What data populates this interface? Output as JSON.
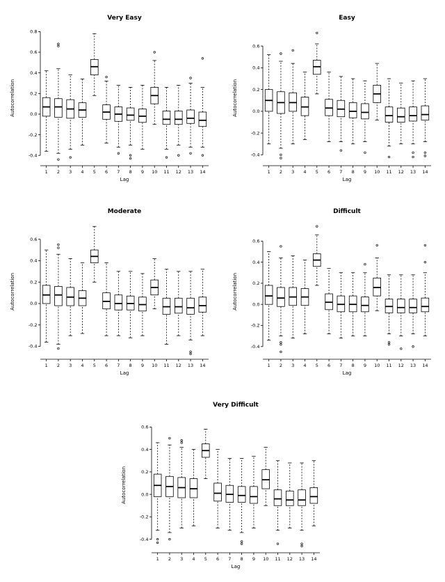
{
  "figure": {
    "background": "#ffffff",
    "line_color": "#000000"
  },
  "box_format": [
    "whisker_low",
    "q1",
    "median",
    "q3",
    "whisker_high",
    "outliers"
  ],
  "chart_data": [
    {
      "type": "boxplot",
      "title": "Very Easy",
      "xlabel": "Lag",
      "ylabel": "Autocorrelation",
      "categories": [
        1,
        2,
        3,
        4,
        5,
        6,
        7,
        8,
        9,
        10,
        11,
        12,
        13,
        14
      ],
      "ylim": [
        -0.5,
        0.85
      ],
      "yticks": [
        -0.4,
        -0.2,
        0.0,
        0.2,
        0.4,
        0.6,
        0.8
      ],
      "grid": false,
      "legend": "none",
      "boxes": [
        [
          -0.36,
          -0.02,
          0.07,
          0.16,
          0.42,
          []
        ],
        [
          -0.38,
          -0.03,
          0.07,
          0.15,
          0.44,
          [
            0.68,
            0.66,
            -0.44
          ]
        ],
        [
          -0.34,
          -0.04,
          0.05,
          0.14,
          0.38,
          [
            -0.42
          ]
        ],
        [
          -0.3,
          -0.03,
          0.04,
          0.11,
          0.34,
          []
        ],
        [
          0.18,
          0.38,
          0.46,
          0.53,
          0.78,
          []
        ],
        [
          -0.28,
          -0.05,
          0.02,
          0.09,
          0.32,
          [
            0.36
          ]
        ],
        [
          -0.32,
          -0.07,
          0.0,
          0.07,
          0.28,
          [
            -0.38
          ]
        ],
        [
          -0.3,
          -0.06,
          -0.01,
          0.06,
          0.26,
          [
            -0.4,
            -0.43
          ]
        ],
        [
          -0.34,
          -0.08,
          -0.02,
          0.05,
          0.28,
          []
        ],
        [
          -0.1,
          0.1,
          0.18,
          0.26,
          0.52,
          [
            0.6
          ]
        ],
        [
          -0.34,
          -0.1,
          -0.05,
          0.03,
          0.26,
          [
            -0.42
          ]
        ],
        [
          -0.3,
          -0.1,
          -0.05,
          0.03,
          0.28,
          [
            -0.4
          ]
        ],
        [
          -0.32,
          -0.09,
          -0.04,
          0.04,
          0.3,
          [
            0.35,
            -0.38
          ]
        ],
        [
          -0.32,
          -0.12,
          -0.06,
          0.02,
          0.26,
          [
            0.54,
            -0.4
          ]
        ]
      ]
    },
    {
      "type": "boxplot",
      "title": "Easy",
      "xlabel": "Lag",
      "ylabel": "Autocorrelation",
      "categories": [
        1,
        2,
        3,
        4,
        5,
        6,
        7,
        8,
        9,
        10,
        11,
        12,
        13,
        14
      ],
      "ylim": [
        -0.5,
        0.78
      ],
      "yticks": [
        -0.4,
        -0.2,
        0.0,
        0.2,
        0.4,
        0.6
      ],
      "grid": false,
      "legend": "none",
      "boxes": [
        [
          -0.3,
          0.0,
          0.1,
          0.2,
          0.52,
          []
        ],
        [
          -0.34,
          -0.02,
          0.08,
          0.18,
          0.46,
          [
            0.53,
            -0.4,
            -0.43
          ]
        ],
        [
          -0.3,
          0.0,
          0.08,
          0.17,
          0.44,
          [
            0.56
          ]
        ],
        [
          -0.26,
          -0.04,
          0.04,
          0.13,
          0.36,
          []
        ],
        [
          0.16,
          0.34,
          0.41,
          0.47,
          0.62,
          [
            0.72
          ]
        ],
        [
          -0.28,
          -0.04,
          0.03,
          0.11,
          0.36,
          []
        ],
        [
          -0.28,
          -0.05,
          0.02,
          0.1,
          0.32,
          [
            -0.36
          ]
        ],
        [
          -0.3,
          -0.06,
          0.0,
          0.08,
          0.3,
          []
        ],
        [
          -0.28,
          -0.07,
          -0.01,
          0.07,
          0.28,
          [
            -0.38
          ]
        ],
        [
          -0.08,
          0.08,
          0.16,
          0.24,
          0.44,
          []
        ],
        [
          -0.32,
          -0.1,
          -0.04,
          0.04,
          0.3,
          [
            -0.42
          ]
        ],
        [
          -0.3,
          -0.1,
          -0.05,
          0.03,
          0.26,
          []
        ],
        [
          -0.3,
          -0.09,
          -0.04,
          0.04,
          0.28,
          [
            -0.38,
            -0.42
          ]
        ],
        [
          -0.28,
          -0.08,
          -0.03,
          0.05,
          0.3,
          [
            -0.38,
            -0.41
          ]
        ]
      ]
    },
    {
      "type": "boxplot",
      "title": "Moderate",
      "xlabel": "Lag",
      "ylabel": "Autocorrelation",
      "categories": [
        1,
        2,
        3,
        4,
        5,
        6,
        7,
        8,
        9,
        10,
        11,
        12,
        13,
        14
      ],
      "ylim": [
        -0.52,
        0.78
      ],
      "yticks": [
        -0.4,
        -0.2,
        0.0,
        0.2,
        0.4,
        0.6
      ],
      "grid": false,
      "legend": "none",
      "boxes": [
        [
          -0.36,
          0.0,
          0.08,
          0.17,
          0.5,
          []
        ],
        [
          -0.38,
          -0.02,
          0.08,
          0.16,
          0.46,
          [
            0.55,
            0.52,
            -0.42
          ]
        ],
        [
          -0.3,
          -0.02,
          0.06,
          0.15,
          0.42,
          []
        ],
        [
          -0.28,
          -0.02,
          0.05,
          0.12,
          0.38,
          []
        ],
        [
          0.2,
          0.38,
          0.44,
          0.5,
          0.72,
          []
        ],
        [
          -0.3,
          -0.05,
          0.02,
          0.1,
          0.38,
          []
        ],
        [
          -0.3,
          -0.06,
          0.0,
          0.08,
          0.3,
          []
        ],
        [
          -0.32,
          -0.06,
          0.0,
          0.07,
          0.3,
          []
        ],
        [
          -0.3,
          -0.07,
          -0.01,
          0.06,
          0.28,
          []
        ],
        [
          -0.05,
          0.08,
          0.15,
          0.22,
          0.42,
          []
        ],
        [
          -0.38,
          -0.1,
          -0.03,
          0.05,
          0.32,
          []
        ],
        [
          -0.3,
          -0.09,
          -0.03,
          0.05,
          0.3,
          []
        ],
        [
          -0.34,
          -0.1,
          -0.04,
          0.05,
          0.3,
          [
            -0.45,
            -0.47
          ]
        ],
        [
          -0.3,
          -0.08,
          -0.02,
          0.06,
          0.32,
          []
        ]
      ]
    },
    {
      "type": "boxplot",
      "title": "Difficult",
      "xlabel": "Lag",
      "ylabel": "Autocorrelation",
      "categories": [
        1,
        2,
        3,
        4,
        5,
        6,
        7,
        8,
        9,
        10,
        11,
        12,
        13,
        14
      ],
      "ylim": [
        -0.52,
        0.8
      ],
      "yticks": [
        -0.4,
        -0.2,
        0.0,
        0.2,
        0.4,
        0.6
      ],
      "grid": false,
      "legend": "none",
      "boxes": [
        [
          -0.34,
          0.0,
          0.08,
          0.18,
          0.5,
          []
        ],
        [
          -0.3,
          -0.02,
          0.06,
          0.16,
          0.44,
          [
            0.55,
            -0.36,
            -0.38,
            -0.45
          ]
        ],
        [
          -0.32,
          -0.01,
          0.07,
          0.16,
          0.46,
          []
        ],
        [
          -0.28,
          -0.01,
          0.07,
          0.15,
          0.42,
          []
        ],
        [
          0.18,
          0.36,
          0.42,
          0.48,
          0.66,
          [
            0.74
          ]
        ],
        [
          -0.28,
          -0.05,
          0.02,
          0.1,
          0.34,
          []
        ],
        [
          -0.32,
          -0.07,
          0.0,
          0.08,
          0.3,
          []
        ],
        [
          -0.3,
          -0.07,
          0.0,
          0.08,
          0.3,
          []
        ],
        [
          -0.3,
          -0.07,
          -0.01,
          0.07,
          0.3,
          [
            0.38
          ]
        ],
        [
          -0.06,
          0.08,
          0.16,
          0.25,
          0.44,
          [
            0.56
          ]
        ],
        [
          -0.28,
          -0.08,
          -0.02,
          0.05,
          0.28,
          [
            -0.36,
            -0.38
          ]
        ],
        [
          -0.3,
          -0.08,
          -0.03,
          0.05,
          0.28,
          [
            -0.42
          ]
        ],
        [
          -0.28,
          -0.08,
          -0.03,
          0.05,
          0.28,
          [
            -0.4
          ]
        ],
        [
          -0.3,
          -0.07,
          -0.02,
          0.06,
          0.3,
          [
            0.56,
            0.4
          ]
        ]
      ]
    },
    {
      "type": "boxplot",
      "title": "Very Difficult",
      "xlabel": "Lag",
      "ylabel": "Autocorrelation",
      "categories": [
        1,
        2,
        3,
        4,
        5,
        6,
        7,
        8,
        9,
        10,
        11,
        12,
        13,
        14
      ],
      "ylim": [
        -0.52,
        0.72
      ],
      "yticks": [
        -0.4,
        -0.2,
        0.0,
        0.2,
        0.4,
        0.6
      ],
      "grid": false,
      "legend": "none",
      "boxes": [
        [
          -0.32,
          -0.02,
          0.08,
          0.18,
          0.46,
          [
            -0.4,
            -0.43
          ]
        ],
        [
          -0.34,
          -0.02,
          0.07,
          0.16,
          0.44,
          [
            0.5,
            -0.4
          ]
        ],
        [
          -0.3,
          -0.03,
          0.06,
          0.15,
          0.42,
          [
            0.48,
            0.46
          ]
        ],
        [
          -0.28,
          -0.03,
          0.05,
          0.14,
          0.4,
          []
        ],
        [
          0.14,
          0.33,
          0.39,
          0.45,
          0.58,
          []
        ],
        [
          -0.3,
          -0.06,
          0.01,
          0.1,
          0.4,
          []
        ],
        [
          -0.32,
          -0.07,
          0.0,
          0.08,
          0.32,
          []
        ],
        [
          -0.34,
          -0.07,
          -0.01,
          0.07,
          0.32,
          [
            -0.42,
            -0.44
          ]
        ],
        [
          -0.3,
          -0.08,
          -0.02,
          0.07,
          0.34,
          []
        ],
        [
          -0.1,
          0.05,
          0.13,
          0.22,
          0.42,
          []
        ],
        [
          -0.32,
          -0.1,
          -0.04,
          0.04,
          0.3,
          [
            -0.44
          ]
        ],
        [
          -0.3,
          -0.1,
          -0.05,
          0.03,
          0.28,
          []
        ],
        [
          -0.32,
          -0.1,
          -0.05,
          0.04,
          0.28,
          [
            -0.44,
            -0.46
          ]
        ],
        [
          -0.28,
          -0.08,
          -0.02,
          0.06,
          0.3,
          []
        ]
      ]
    }
  ]
}
